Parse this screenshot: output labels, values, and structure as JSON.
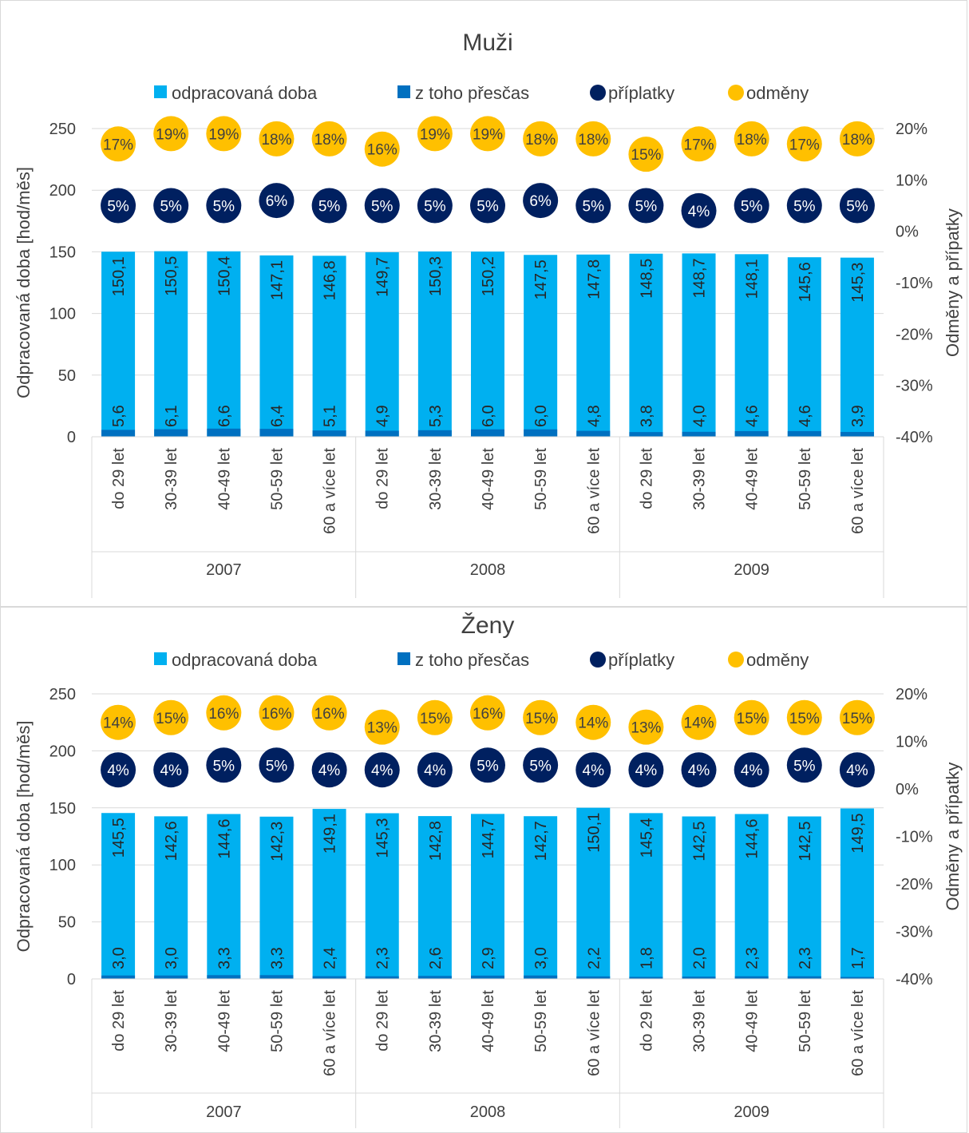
{
  "colors": {
    "hours": "#00b0f0",
    "overtime": "#0070c0",
    "surcharges": "#002060",
    "bonuses": "#ffc000",
    "text": "#404040",
    "grid": "#d9d9d9"
  },
  "chart_data": [
    {
      "type": "bar",
      "title": "Muži",
      "ylabel": "Odpracovaná doba [hod/měs]",
      "y2label": "Odměny a přípatky",
      "ylim": [
        0,
        250
      ],
      "yticks": [
        "0",
        "50",
        "100",
        "150",
        "200",
        "250"
      ],
      "y2lim": [
        -40,
        20
      ],
      "y2ticks": [
        "-40%",
        "-30%",
        "-20%",
        "-10%",
        "0%",
        "10%",
        "20%"
      ],
      "grid": true,
      "legend_position": "top",
      "legend": [
        "odpracovaná doba",
        "z toho přesčas",
        "příplatky",
        "odměny"
      ],
      "years": [
        "2007",
        "2008",
        "2009"
      ],
      "categories": [
        "do 29 let",
        "30-39 let",
        "40-49 let",
        "50-59 let",
        "60 a více let",
        "do 29 let",
        "30-39 let",
        "40-49 let",
        "50-59 let",
        "60 a více let",
        "do 29 let",
        "30-39 let",
        "40-49 let",
        "50-59 let",
        "60 a více let"
      ],
      "hours": [
        150.1,
        150.5,
        150.4,
        147.1,
        146.8,
        149.7,
        150.3,
        150.2,
        147.5,
        147.8,
        148.5,
        148.7,
        148.1,
        145.6,
        145.3
      ],
      "hours_labels": [
        "150,1",
        "150,5",
        "150,4",
        "147,1",
        "146,8",
        "149,7",
        "150,3",
        "150,2",
        "147,5",
        "147,8",
        "148,5",
        "148,7",
        "148,1",
        "145,6",
        "145,3"
      ],
      "overtime": [
        5.6,
        6.1,
        6.6,
        6.4,
        5.1,
        4.9,
        5.3,
        6.0,
        6.0,
        4.8,
        3.8,
        4.0,
        4.6,
        4.6,
        3.9
      ],
      "overtime_labels": [
        "5,6",
        "6,1",
        "6,6",
        "6,4",
        "5,1",
        "4,9",
        "5,3",
        "6,0",
        "6,0",
        "4,8",
        "3,8",
        "4,0",
        "4,6",
        "4,6",
        "3,9"
      ],
      "surcharges": [
        5,
        5,
        5,
        6,
        5,
        5,
        5,
        5,
        6,
        5,
        5,
        4,
        5,
        5,
        5
      ],
      "surcharges_labels": [
        "5%",
        "5%",
        "5%",
        "6%",
        "5%",
        "5%",
        "5%",
        "5%",
        "6%",
        "5%",
        "5%",
        "4%",
        "5%",
        "5%",
        "5%"
      ],
      "bonuses": [
        17,
        19,
        19,
        18,
        18,
        16,
        19,
        19,
        18,
        18,
        15,
        17,
        18,
        17,
        18
      ],
      "bonuses_labels": [
        "17%",
        "19%",
        "19%",
        "18%",
        "18%",
        "16%",
        "19%",
        "19%",
        "18%",
        "18%",
        "15%",
        "17%",
        "18%",
        "17%",
        "18%"
      ]
    },
    {
      "type": "bar",
      "title": "Ženy",
      "ylabel": "Odpracovaná doba [hod/měs]",
      "y2label": "Odměny a přípatky",
      "ylim": [
        0,
        250
      ],
      "yticks": [
        "0",
        "50",
        "100",
        "150",
        "200",
        "250"
      ],
      "y2lim": [
        -40,
        20
      ],
      "y2ticks": [
        "-40%",
        "-30%",
        "-20%",
        "-10%",
        "0%",
        "10%",
        "20%"
      ],
      "grid": true,
      "legend_position": "top",
      "legend": [
        "odpracovaná doba",
        "z toho přesčas",
        "příplatky",
        "odměny"
      ],
      "years": [
        "2007",
        "2008",
        "2009"
      ],
      "categories": [
        "do 29 let",
        "30-39 let",
        "40-49 let",
        "50-59 let",
        "60 a více let",
        "do 29 let",
        "30-39 let",
        "40-49 let",
        "50-59 let",
        "60 a více let",
        "do 29 let",
        "30-39 let",
        "40-49 let",
        "50-59 let",
        "60 a více let"
      ],
      "hours": [
        145.5,
        142.6,
        144.6,
        142.3,
        149.1,
        145.3,
        142.8,
        144.7,
        142.7,
        150.1,
        145.4,
        142.5,
        144.6,
        142.5,
        149.5
      ],
      "hours_labels": [
        "145,5",
        "142,6",
        "144,6",
        "142,3",
        "149,1",
        "145,3",
        "142,8",
        "144,7",
        "142,7",
        "150,1",
        "145,4",
        "142,5",
        "144,6",
        "142,5",
        "149,5"
      ],
      "overtime": [
        3.0,
        3.0,
        3.3,
        3.3,
        2.4,
        2.3,
        2.6,
        2.9,
        3.0,
        2.2,
        1.8,
        2.0,
        2.3,
        2.3,
        1.7
      ],
      "overtime_labels": [
        "3,0",
        "3,0",
        "3,3",
        "3,3",
        "2,4",
        "2,3",
        "2,6",
        "2,9",
        "3,0",
        "2,2",
        "1,8",
        "2,0",
        "2,3",
        "2,3",
        "1,7"
      ],
      "surcharges": [
        4,
        4,
        5,
        5,
        4,
        4,
        4,
        5,
        5,
        4,
        4,
        4,
        4,
        5,
        4
      ],
      "surcharges_labels": [
        "4%",
        "4%",
        "5%",
        "5%",
        "4%",
        "4%",
        "4%",
        "5%",
        "5%",
        "4%",
        "4%",
        "4%",
        "4%",
        "5%",
        "4%"
      ],
      "bonuses": [
        14,
        15,
        16,
        16,
        16,
        13,
        15,
        16,
        15,
        14,
        13,
        14,
        15,
        15,
        15
      ],
      "bonuses_labels": [
        "14%",
        "15%",
        "16%",
        "16%",
        "16%",
        "13%",
        "15%",
        "16%",
        "15%",
        "14%",
        "13%",
        "14%",
        "15%",
        "15%",
        "15%"
      ]
    }
  ]
}
